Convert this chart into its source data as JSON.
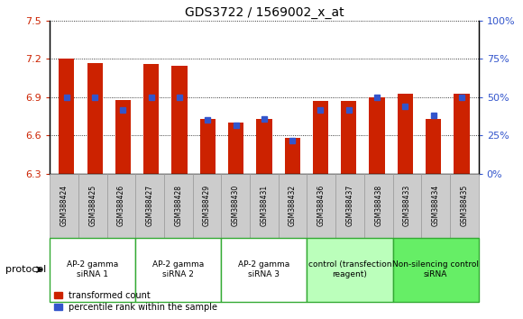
{
  "title": "GDS3722 / 1569002_x_at",
  "samples": [
    "GSM388424",
    "GSM388425",
    "GSM388426",
    "GSM388427",
    "GSM388428",
    "GSM388429",
    "GSM388430",
    "GSM388431",
    "GSM388432",
    "GSM388436",
    "GSM388437",
    "GSM388438",
    "GSM388433",
    "GSM388434",
    "GSM388435"
  ],
  "transformed_count": [
    7.2,
    7.17,
    6.88,
    7.16,
    7.15,
    6.73,
    6.7,
    6.73,
    6.58,
    6.87,
    6.87,
    6.9,
    6.93,
    6.73,
    6.93
  ],
  "percentile_rank": [
    50,
    50,
    42,
    50,
    50,
    35,
    32,
    36,
    22,
    42,
    42,
    50,
    44,
    38,
    50
  ],
  "ymin": 6.3,
  "ymax": 7.5,
  "yticks": [
    6.3,
    6.6,
    6.9,
    7.2,
    7.5
  ],
  "y2min": 0,
  "y2max": 100,
  "y2ticks": [
    0,
    25,
    50,
    75,
    100
  ],
  "bar_color": "#CC2200",
  "dot_color": "#3355CC",
  "bar_width": 0.55,
  "left_tick_color": "#CC2200",
  "right_tick_color": "#3355CC",
  "bg_color": "#FFFFFF",
  "groups": [
    {
      "label": "AP-2 gamma\nsiRNA 1",
      "start": 0,
      "end": 3,
      "color": "#FFFFFF"
    },
    {
      "label": "AP-2 gamma\nsiRNA 2",
      "start": 3,
      "end": 6,
      "color": "#FFFFFF"
    },
    {
      "label": "AP-2 gamma\nsiRNA 3",
      "start": 6,
      "end": 9,
      "color": "#FFFFFF"
    },
    {
      "label": "control (transfection\nreagent)",
      "start": 9,
      "end": 12,
      "color": "#BBFFBB"
    },
    {
      "label": "Non-silencing control\nsiRNA",
      "start": 12,
      "end": 15,
      "color": "#66EE66"
    }
  ],
  "group_border": "#33AA33",
  "sample_box_color": "#CCCCCC",
  "sample_box_edge": "#999999",
  "protocol_label": "protocol",
  "legend_items": [
    {
      "label": "transformed count",
      "color": "#CC2200"
    },
    {
      "label": "percentile rank within the sample",
      "color": "#3355CC"
    }
  ]
}
